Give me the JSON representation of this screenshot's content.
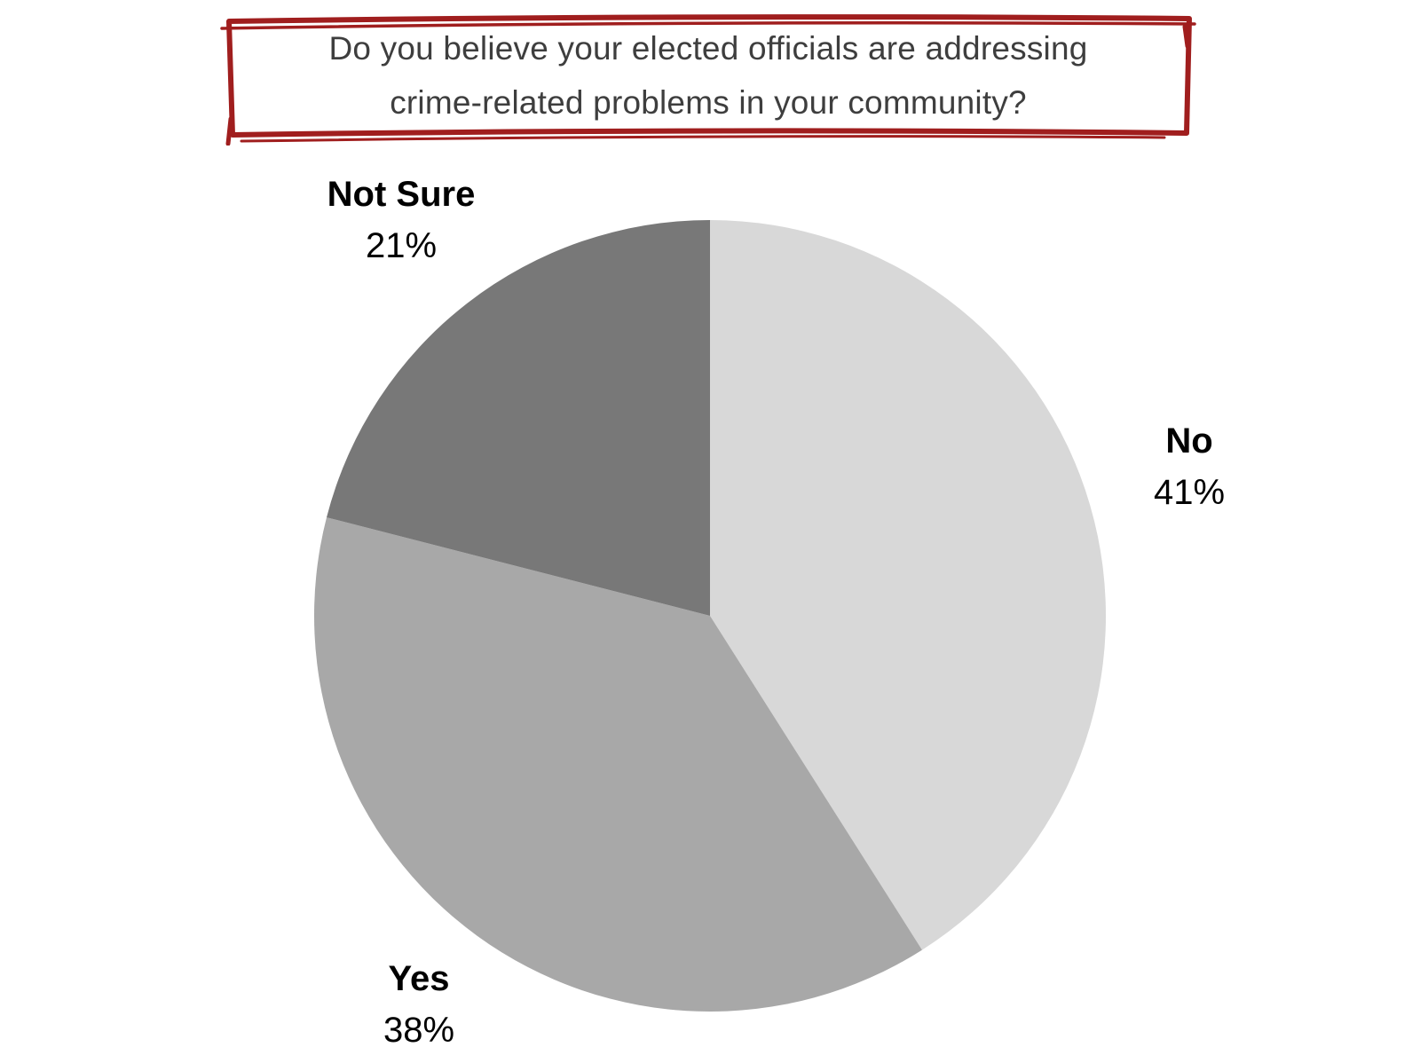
{
  "title": {
    "lines": [
      "Do you believe your elected officials are addressing",
      "crime-related problems in your community?"
    ],
    "text_color": "#3e3e3e",
    "border_color": "#a01e1e"
  },
  "chart_data": {
    "type": "pie",
    "title": "Do you believe your elected officials are addressing crime-related problems in your community?",
    "start_angle_deg": 0,
    "direction": "clockwise",
    "legend": "none",
    "labels_position": "outside",
    "total": 100,
    "slices": [
      {
        "label": "No",
        "value": 41,
        "display": "41%",
        "color": "#d8d8d8"
      },
      {
        "label": "Yes",
        "value": 38,
        "display": "38%",
        "color": "#a8a8a8"
      },
      {
        "label": "Not Sure",
        "value": 21,
        "display": "21%",
        "color": "#787878"
      }
    ]
  }
}
